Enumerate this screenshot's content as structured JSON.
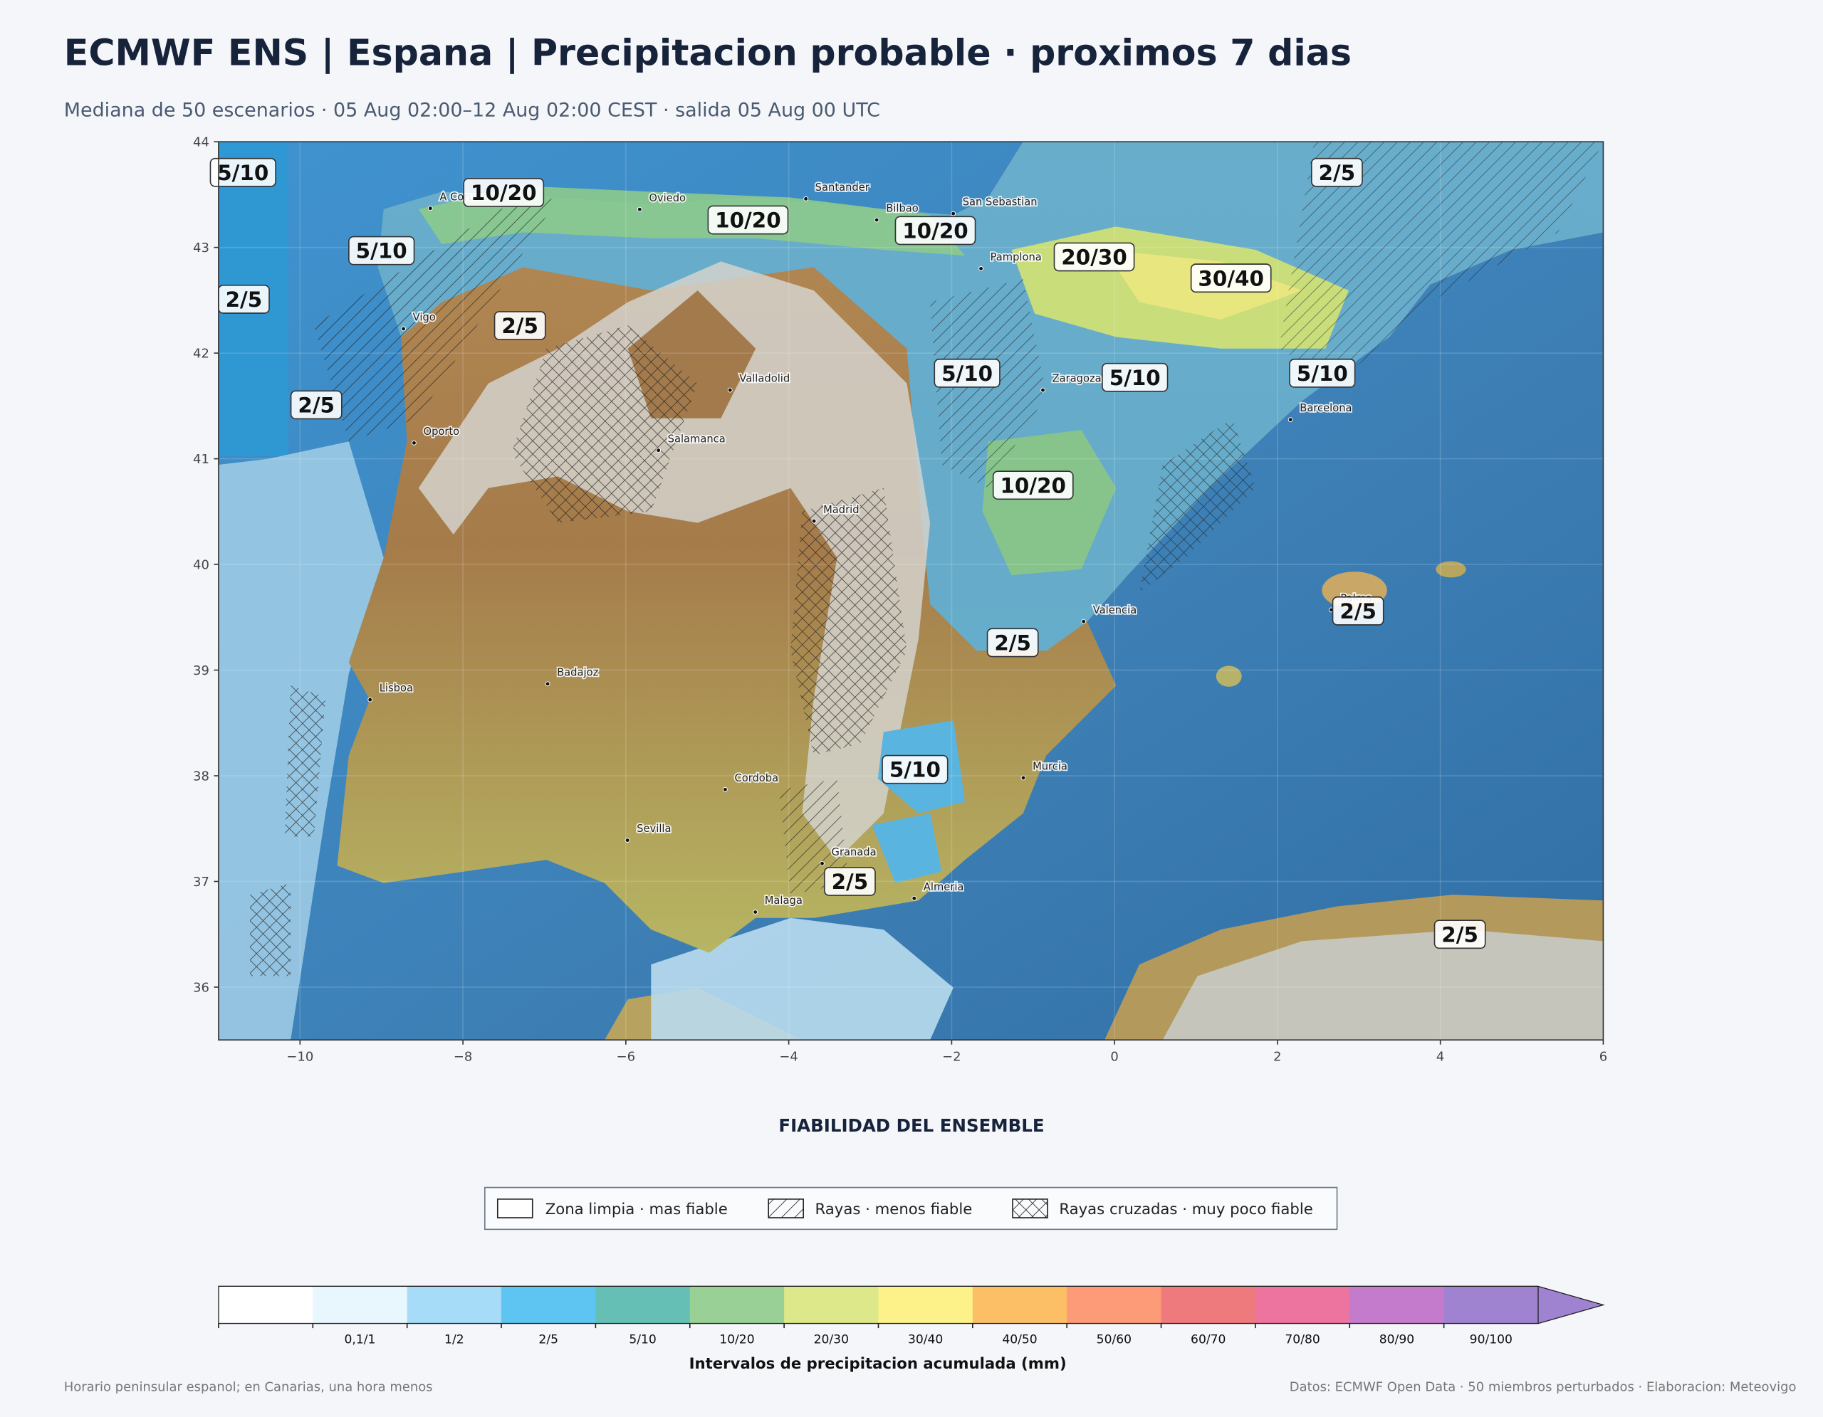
{
  "header": {
    "title": "ECMWF ENS | Espana | Precipitacion probable · proximos 7 dias",
    "subtitle": "Mediana de 50 escenarios · 05 Aug 02:00–12 Aug 02:00 CEST · salida 05 Aug 00 UTC"
  },
  "map": {
    "xlim": [
      -11,
      6
    ],
    "ylim": [
      35.5,
      44
    ],
    "xticks": [
      {
        "value": -10,
        "label": "−10"
      },
      {
        "value": -8,
        "label": "−8"
      },
      {
        "value": -6,
        "label": "−6"
      },
      {
        "value": -4,
        "label": "−4"
      },
      {
        "value": -2,
        "label": "−2"
      },
      0,
      2,
      4,
      6
    ],
    "yticks": [
      36,
      37,
      38,
      39,
      40,
      41,
      42,
      43,
      44
    ],
    "grid": true,
    "cities": [
      {
        "name": "A Coruna",
        "lon": -8.4,
        "lat": 43.37
      },
      {
        "name": "Oviedo",
        "lon": -5.83,
        "lat": 43.36
      },
      {
        "name": "Santander",
        "lon": -3.79,
        "lat": 43.46
      },
      {
        "name": "Bilbao",
        "lon": -2.92,
        "lat": 43.26
      },
      {
        "name": "San Sebastian",
        "lon": -1.98,
        "lat": 43.32
      },
      {
        "name": "Pamplona",
        "lon": -1.64,
        "lat": 42.8
      },
      {
        "name": "Vigo",
        "lon": -8.73,
        "lat": 42.23
      },
      {
        "name": "Valladolid",
        "lon": -4.72,
        "lat": 41.65
      },
      {
        "name": "Zaragoza",
        "lon": -0.88,
        "lat": 41.65
      },
      {
        "name": "Barcelona",
        "lon": 2.16,
        "lat": 41.37
      },
      {
        "name": "Oporto",
        "lon": -8.6,
        "lat": 41.15
      },
      {
        "name": "Salamanca",
        "lon": -5.6,
        "lat": 41.08
      },
      {
        "name": "Madrid",
        "lon": -3.69,
        "lat": 40.41
      },
      {
        "name": "Valencia",
        "lon": -0.38,
        "lat": 39.46
      },
      {
        "name": "Palma",
        "lon": 2.66,
        "lat": 39.57
      },
      {
        "name": "Lisboa",
        "lon": -9.14,
        "lat": 38.72
      },
      {
        "name": "Badajoz",
        "lon": -6.96,
        "lat": 38.87
      },
      {
        "name": "Cordoba",
        "lon": -4.78,
        "lat": 37.87
      },
      {
        "name": "Murcia",
        "lon": -1.12,
        "lat": 37.98
      },
      {
        "name": "Sevilla",
        "lon": -5.98,
        "lat": 37.39
      },
      {
        "name": "Granada",
        "lon": -3.59,
        "lat": 37.17
      },
      {
        "name": "Almeria",
        "lon": -2.46,
        "lat": 36.84
      },
      {
        "name": "Malaga",
        "lon": -4.41,
        "lat": 36.71
      }
    ],
    "regions": [
      {
        "label": "5/10",
        "lon": -10.7,
        "lat": 43.71
      },
      {
        "label": "10/20",
        "lon": -7.5,
        "lat": 43.52
      },
      {
        "label": "10/20",
        "lon": -4.5,
        "lat": 43.26
      },
      {
        "label": "10/20",
        "lon": -2.2,
        "lat": 43.16
      },
      {
        "label": "2/5",
        "lon": 2.73,
        "lat": 43.71
      },
      {
        "label": "5/10",
        "lon": -9.0,
        "lat": 42.97
      },
      {
        "label": "20/30",
        "lon": -0.25,
        "lat": 42.91
      },
      {
        "label": "30/40",
        "lon": 1.43,
        "lat": 42.71
      },
      {
        "label": "2/5",
        "lon": -10.69,
        "lat": 42.51
      },
      {
        "label": "2/5",
        "lon": -7.3,
        "lat": 42.26
      },
      {
        "label": "5/10",
        "lon": -1.81,
        "lat": 41.81
      },
      {
        "label": "5/10",
        "lon": 0.25,
        "lat": 41.77
      },
      {
        "label": "5/10",
        "lon": 2.55,
        "lat": 41.81
      },
      {
        "label": "2/5",
        "lon": -9.8,
        "lat": 41.51
      },
      {
        "label": "10/20",
        "lon": -1.0,
        "lat": 40.75
      },
      {
        "label": "2/5",
        "lon": -1.25,
        "lat": 39.26
      },
      {
        "label": "2/5",
        "lon": 2.99,
        "lat": 39.56
      },
      {
        "label": "5/10",
        "lon": -2.45,
        "lat": 38.06
      },
      {
        "label": "2/5",
        "lon": -3.25,
        "lat": 37.0
      },
      {
        "label": "2/5",
        "lon": 4.24,
        "lat": 36.5
      }
    ]
  },
  "legend": {
    "title": "FIABILIDAD DEL ENSEMBLE",
    "entries": [
      "Zona limpia · mas fiable",
      "Rayas · menos fiable",
      "Rayas cruzadas · muy poco fiable"
    ]
  },
  "colorbar": {
    "labels": [
      null,
      "0,1/1",
      "1/2",
      "2/5",
      "5/10",
      "10/20",
      "20/30",
      "30/40",
      "40/50",
      "50/60",
      "60/70",
      "70/80",
      "80/90",
      "90/100"
    ],
    "colors": [
      "#ffffff",
      "#e8f6fd",
      "#a6dcf8",
      "#5ec4f2",
      "#66bfb5",
      "#98d095",
      "#dde88a",
      "#fdf18a",
      "#fdbf66",
      "#fd9a78",
      "#ef7a7d",
      "#ee74a0",
      "#c47bcb",
      "#a083d0"
    ],
    "extend_color": "#a083d0",
    "title": "Intervalos de precipitacion acumulada (mm)"
  },
  "footer": {
    "left": "Horario peninsular espanol; en Canarias, una hora menos",
    "right": "Datos: ECMWF Open Data · 50 miembros perturbados · Elaboracion: Meteovigo"
  }
}
